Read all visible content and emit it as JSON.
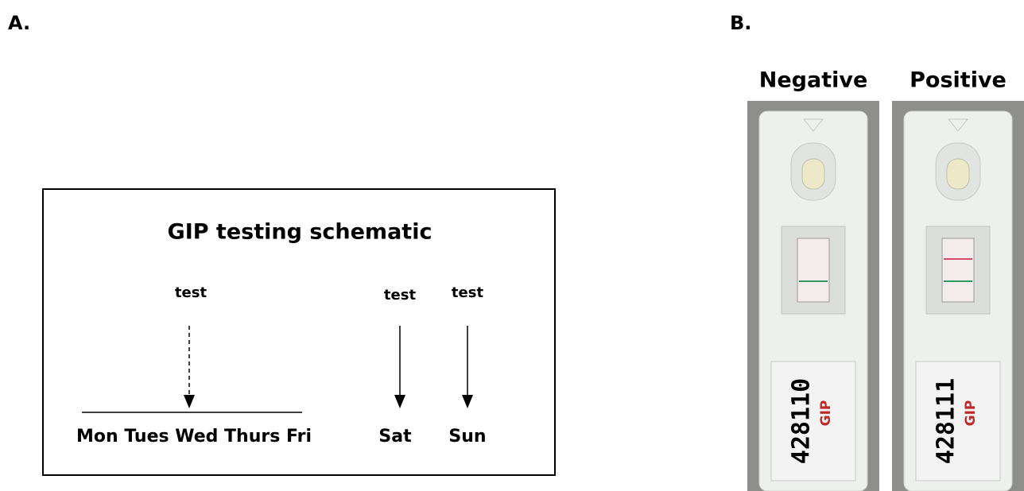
{
  "panel_a": {
    "label": "A.",
    "title": "GIP testing schematic",
    "tests": [
      "test",
      "test",
      "test"
    ],
    "weekdays": "Mon Tues Wed Thurs Fri",
    "weekend": [
      "Sat",
      "Sun"
    ]
  },
  "panel_b": {
    "label": "B.",
    "strips": [
      {
        "heading": "Negative",
        "id_text": "428110",
        "brand": "GIP"
      },
      {
        "heading": "Positive",
        "id_text": "428111",
        "brand": "GIP"
      }
    ]
  }
}
